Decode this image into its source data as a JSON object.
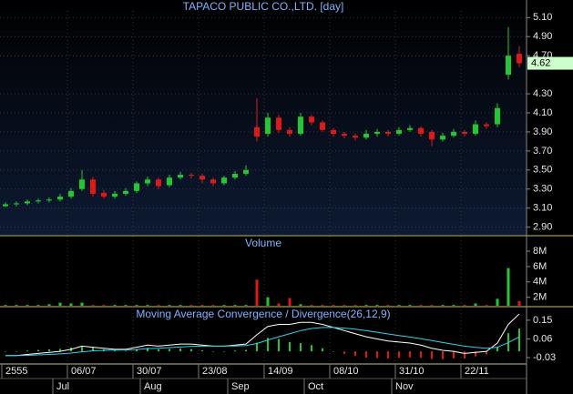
{
  "chart_data": [
    {
      "type": "candlestick",
      "title": "TAPACO PUBLIC CO.,LTD. [day]",
      "up_color": "#22c832",
      "down_color": "#e01818",
      "categories": [
        "2555",
        null,
        null,
        null,
        null,
        null,
        "06/07",
        null,
        null,
        null,
        null,
        null,
        "30/07",
        null,
        null,
        null,
        null,
        null,
        "23/08",
        null,
        null,
        null,
        null,
        null,
        "14/09",
        null,
        null,
        null,
        null,
        null,
        "08/10",
        null,
        null,
        null,
        null,
        null,
        "31/10",
        null,
        null,
        null,
        null,
        null,
        "22/11",
        null,
        null,
        null,
        null,
        null
      ],
      "months": [
        null,
        null,
        null,
        null,
        null,
        "Jul",
        null,
        null,
        null,
        null,
        null,
        null,
        null,
        "Aug",
        null,
        null,
        null,
        null,
        null,
        null,
        null,
        "Sep",
        null,
        null,
        null,
        null,
        null,
        null,
        "Oct",
        null,
        null,
        null,
        null,
        null,
        null,
        null,
        "Nov",
        null,
        null,
        null,
        null,
        null,
        null,
        null,
        null,
        null,
        null,
        null
      ],
      "candles": {
        "open": [
          3.12,
          3.14,
          3.15,
          3.17,
          3.18,
          3.19,
          3.22,
          3.3,
          3.4,
          3.26,
          3.22,
          3.25,
          3.28,
          3.36,
          3.4,
          3.34,
          3.42,
          3.45,
          3.44,
          3.4,
          3.36,
          3.42,
          3.46,
          3.95,
          3.88,
          4.05,
          3.92,
          3.88,
          4.06,
          4.0,
          3.92,
          3.88,
          3.86,
          3.84,
          3.88,
          3.9,
          3.88,
          3.92,
          3.94,
          3.9,
          3.82,
          3.86,
          3.9,
          3.88,
          3.98,
          3.98,
          4.5,
          4.72
        ],
        "high": [
          3.16,
          3.17,
          3.19,
          3.2,
          3.21,
          3.25,
          3.31,
          3.5,
          3.43,
          3.29,
          3.28,
          3.31,
          3.38,
          3.43,
          3.42,
          3.45,
          3.48,
          3.47,
          3.46,
          3.42,
          3.44,
          3.49,
          3.55,
          4.25,
          4.1,
          4.08,
          3.95,
          4.1,
          4.08,
          4.02,
          3.94,
          3.9,
          3.88,
          3.92,
          3.93,
          3.92,
          3.95,
          3.97,
          3.96,
          3.92,
          3.89,
          3.93,
          3.92,
          4.02,
          4.0,
          4.2,
          5.0,
          4.8
        ],
        "low": [
          3.11,
          3.12,
          3.13,
          3.15,
          3.16,
          3.17,
          3.2,
          3.28,
          3.22,
          3.2,
          3.2,
          3.23,
          3.26,
          3.33,
          3.3,
          3.32,
          3.4,
          3.41,
          3.36,
          3.33,
          3.34,
          3.4,
          3.44,
          3.8,
          3.85,
          3.89,
          3.85,
          3.86,
          3.97,
          3.9,
          3.85,
          3.83,
          3.81,
          3.82,
          3.85,
          3.85,
          3.86,
          3.9,
          3.85,
          3.75,
          3.8,
          3.84,
          3.85,
          3.86,
          3.93,
          3.95,
          4.45,
          4.58
        ],
        "close": [
          3.14,
          3.15,
          3.17,
          3.18,
          3.19,
          3.22,
          3.28,
          3.4,
          3.25,
          3.22,
          3.25,
          3.28,
          3.36,
          3.4,
          3.33,
          3.42,
          3.45,
          3.44,
          3.4,
          3.36,
          3.42,
          3.46,
          3.5,
          3.85,
          4.05,
          3.92,
          3.88,
          4.06,
          4.0,
          3.92,
          3.88,
          3.86,
          3.84,
          3.88,
          3.9,
          3.88,
          3.92,
          3.94,
          3.88,
          3.82,
          3.86,
          3.9,
          3.88,
          3.98,
          3.96,
          4.15,
          4.7,
          4.62
        ]
      },
      "ylim": [
        2.82,
        5.17
      ],
      "yticks": [
        {
          "value": 5.1,
          "label": "5.10"
        },
        {
          "value": 4.9,
          "label": "4.90"
        },
        {
          "value": 4.7,
          "label": "4.70"
        },
        {
          "value": 4.3,
          "label": "4.30"
        },
        {
          "value": 4.1,
          "label": "4.10"
        },
        {
          "value": 3.9,
          "label": "3.90"
        },
        {
          "value": 3.7,
          "label": "3.70"
        },
        {
          "value": 3.5,
          "label": "3.50"
        },
        {
          "value": 3.3,
          "label": "3.30"
        },
        {
          "value": 3.1,
          "label": "3.10"
        },
        {
          "value": 2.9,
          "label": "2.90"
        }
      ],
      "grid": true
    },
    {
      "type": "volume",
      "title": "Volume",
      "up_color": "#22c832",
      "down_color": "#e01818",
      "values": [
        1.0,
        1.0,
        1.0,
        1.0,
        1.1,
        1.3,
        1.2,
        1.3,
        1.0,
        1.0,
        1.0,
        1.0,
        1.0,
        1.0,
        1.0,
        1.0,
        1.0,
        1.0,
        1.0,
        1.0,
        1.0,
        1.0,
        1.0,
        4.3,
        2.0,
        1.2,
        1.9,
        1.1,
        1.0,
        1.0,
        1.0,
        1.0,
        1.0,
        1.0,
        1.0,
        1.0,
        1.0,
        1.0,
        1.0,
        1.0,
        1.0,
        1.0,
        1.0,
        1.2,
        1.0,
        1.8,
        5.8,
        1.5
      ],
      "ylim": [
        0.9,
        9.9
      ],
      "yticks": [
        {
          "value": 8,
          "label": "8M"
        },
        {
          "value": 6,
          "label": "6M"
        },
        {
          "value": 4,
          "label": "4M"
        },
        {
          "value": 2,
          "label": "2M"
        }
      ]
    },
    {
      "type": "macd",
      "title": "Moving Average Convergence / Divergence(26,12,9)",
      "series": [
        {
          "color": "#ffffff",
          "values": [
            -0.02,
            -0.02,
            -0.015,
            -0.01,
            -0.005,
            0.0,
            0.01,
            0.025,
            0.02,
            0.015,
            0.01,
            0.01,
            0.02,
            0.03,
            0.025,
            0.03,
            0.035,
            0.035,
            0.03,
            0.025,
            0.025,
            0.03,
            0.035,
            0.08,
            0.12,
            0.13,
            0.13,
            0.14,
            0.14,
            0.13,
            0.115,
            0.1,
            0.085,
            0.07,
            0.06,
            0.05,
            0.045,
            0.04,
            0.03,
            0.015,
            0.005,
            0.0,
            -0.01,
            -0.005,
            0.0,
            0.04,
            0.13,
            0.18
          ]
        },
        {
          "color": "#30d0f0",
          "values": [
            -0.02,
            -0.02,
            -0.019,
            -0.017,
            -0.015,
            -0.012,
            -0.008,
            -0.002,
            0.002,
            0.005,
            0.006,
            0.007,
            0.009,
            0.013,
            0.015,
            0.018,
            0.021,
            0.024,
            0.025,
            0.025,
            0.025,
            0.026,
            0.028,
            0.038,
            0.055,
            0.07,
            0.085,
            0.1,
            0.11,
            0.115,
            0.115,
            0.112,
            0.107,
            0.1,
            0.092,
            0.084,
            0.076,
            0.069,
            0.061,
            0.052,
            0.043,
            0.034,
            0.025,
            0.019,
            0.015,
            0.02,
            0.042,
            0.07
          ]
        }
      ],
      "histogram": [
        0,
        0,
        0.004,
        0.007,
        0.01,
        0.012,
        0.018,
        0.027,
        0.018,
        0.01,
        0.004,
        0.003,
        0.011,
        0.017,
        0.01,
        0.012,
        0.014,
        0.011,
        0.005,
        0,
        0,
        0.004,
        0.007,
        0.042,
        0.065,
        0.06,
        0.045,
        0.04,
        0.03,
        0.015,
        0,
        -0.012,
        -0.022,
        -0.03,
        -0.032,
        -0.034,
        -0.031,
        -0.029,
        -0.031,
        -0.037,
        -0.038,
        -0.034,
        -0.035,
        -0.024,
        -0.015,
        0.02,
        0.088,
        0.11
      ],
      "ylim": [
        -0.052,
        0.211
      ],
      "yticks": [
        0.15,
        0.06,
        -0.03
      ]
    }
  ]
}
